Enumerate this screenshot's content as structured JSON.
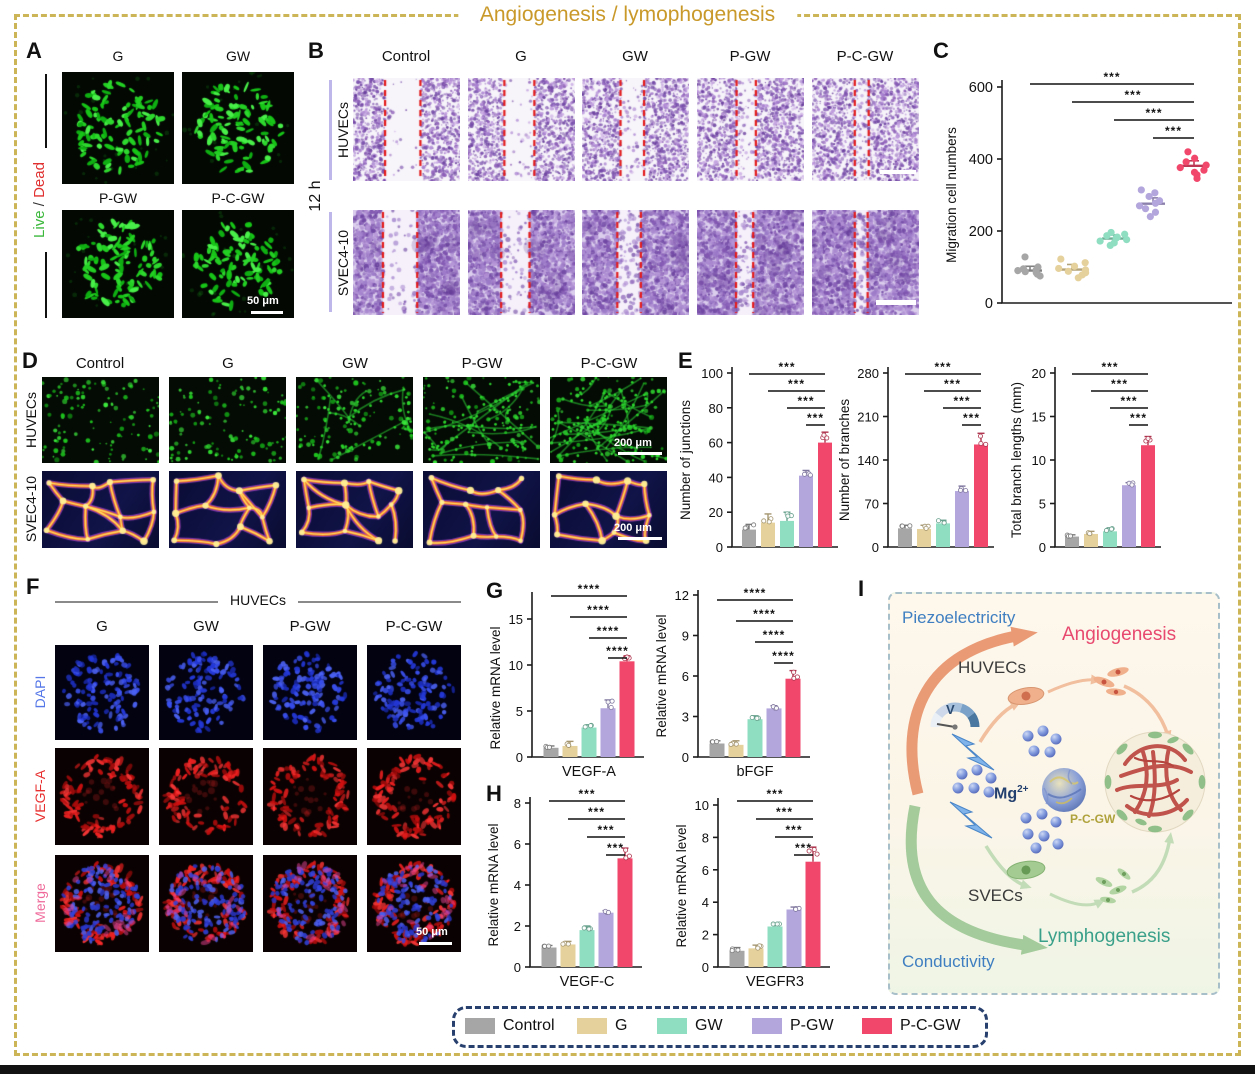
{
  "title": "Angiogenesis / lymophogenesis",
  "colors": {
    "accent_gold": "#c9992a",
    "border_gold": "#cbb557",
    "legend_border": "#27406e",
    "red_dash": "#e31b1b",
    "control": "#a6a6a6",
    "g": "#e5d19c",
    "gw": "#8fdec2",
    "pgw": "#b3a6dd",
    "pcgw": "#f1476b"
  },
  "legend": {
    "items": [
      {
        "label": "Control",
        "color": "#a6a6a6"
      },
      {
        "label": "G",
        "color": "#e5d19c"
      },
      {
        "label": "GW",
        "color": "#8fdec2"
      },
      {
        "label": "P-GW",
        "color": "#b3a6dd"
      },
      {
        "label": "P-C-GW",
        "color": "#f1476b"
      }
    ]
  },
  "panelA": {
    "letter": "A",
    "live": "Live",
    "slash": " / ",
    "dead": "Dead",
    "labels": [
      "G",
      "GW",
      "P-GW",
      "P-C-GW"
    ],
    "scalebar": "50 μm"
  },
  "panelB": {
    "letter": "B",
    "time": "12 h",
    "rows": [
      "HUVECs",
      "SVEC4-10"
    ],
    "columns": [
      "Control",
      "G",
      "GW",
      "P-GW",
      "P-C-GW"
    ]
  },
  "panelC": {
    "letter": "C"
  },
  "panelD": {
    "letter": "D",
    "rows": [
      "HUVECs",
      "SVEC4-10"
    ],
    "columns": [
      "Control",
      "G",
      "GW",
      "P-GW",
      "P-C-GW"
    ],
    "scalebar": "200 μm"
  },
  "panelE": {
    "letter": "E"
  },
  "panelF": {
    "letter": "F",
    "header": "HUVECs",
    "columns": [
      "G",
      "GW",
      "P-GW",
      "P-C-GW"
    ],
    "rows": [
      "DAPI",
      "VEGF-A",
      "Merge"
    ],
    "scalebar": "50 μm"
  },
  "panelG": {
    "letter": "G"
  },
  "panelH": {
    "letter": "H"
  },
  "panelI": {
    "letter": "I",
    "piezoelectricity": "Piezoelectricity",
    "angiogenesis": "Angiogenesis",
    "huvecs": "HUVECs",
    "voltage": "V",
    "mg": "Mg",
    "mg_sup": "2+",
    "pcgw": "P-C-GW",
    "svecs": "SVECs",
    "lymphogenesis": "Lymphogenesis",
    "conductivity": "Conductivity"
  },
  "chart_data": [
    {
      "id": "C",
      "type": "scatter",
      "ylabel": "Migration cell numbers",
      "categories": [
        "Control",
        "G",
        "GW",
        "P-GW",
        "P-C-GW"
      ],
      "ylim": [
        0,
        600
      ],
      "yticks": [
        0,
        200,
        400,
        600
      ],
      "grid": false,
      "legend_position": "none",
      "series": [
        {
          "name": "Control",
          "color": "#a6a6a6",
          "points": [
            75,
            80,
            84,
            87,
            90,
            92,
            95,
            100,
            128
          ]
        },
        {
          "name": "G",
          "color": "#e5d19c",
          "points": [
            70,
            78,
            84,
            88,
            92,
            96,
            102,
            112,
            122
          ]
        },
        {
          "name": "GW",
          "color": "#8fdec2",
          "points": [
            160,
            167,
            172,
            176,
            180,
            183,
            187,
            191,
            196
          ]
        },
        {
          "name": "P-GW",
          "color": "#b3a6dd",
          "points": [
            240,
            252,
            262,
            270,
            277,
            284,
            296,
            306,
            314
          ]
        },
        {
          "name": "P-C-GW",
          "color": "#f1476b",
          "points": [
            346,
            356,
            363,
            369,
            376,
            383,
            392,
            402,
            420
          ]
        }
      ],
      "means": [
        90,
        93,
        179,
        276,
        381
      ],
      "errs": [
        12,
        14,
        10,
        16,
        14
      ],
      "sig": {
        "label": "***",
        "pairs": [
          [
            0,
            4
          ],
          [
            1,
            4
          ],
          [
            2,
            4
          ],
          [
            3,
            4
          ]
        ]
      }
    },
    {
      "id": "E1",
      "type": "bar",
      "ylabel": "Number of junctions",
      "categories": [
        "Control",
        "G",
        "GW",
        "P-GW",
        "P-C-GW"
      ],
      "values": [
        10,
        14,
        15,
        41,
        60
      ],
      "errors": [
        3,
        5,
        5,
        3,
        6
      ],
      "ylim": [
        0,
        100
      ],
      "yticks": [
        0,
        20,
        40,
        60,
        80,
        100
      ],
      "sig": {
        "label": "***",
        "pairs": [
          [
            0,
            4
          ],
          [
            1,
            4
          ],
          [
            2,
            4
          ],
          [
            3,
            4
          ]
        ]
      }
    },
    {
      "id": "E2",
      "type": "bar",
      "ylabel": "Number of branches",
      "categories": [
        "Control",
        "G",
        "GW",
        "P-GW",
        "P-C-GW"
      ],
      "values": [
        30,
        29,
        38,
        90,
        165
      ],
      "errors": [
        5,
        6,
        5,
        8,
        18
      ],
      "ylim": [
        0,
        280
      ],
      "yticks": [
        0,
        70,
        140,
        210,
        280
      ],
      "sig": {
        "label": "***",
        "pairs": [
          [
            0,
            4
          ],
          [
            1,
            4
          ],
          [
            2,
            4
          ],
          [
            3,
            4
          ]
        ]
      }
    },
    {
      "id": "E3",
      "type": "bar",
      "ylabel": "Total branch lengths (mm)",
      "categories": [
        "Control",
        "G",
        "GW",
        "P-GW",
        "P-C-GW"
      ],
      "values": [
        1.2,
        1.5,
        1.8,
        7.1,
        11.7
      ],
      "errors": [
        0.2,
        0.3,
        0.4,
        0.3,
        1.0
      ],
      "ylim": [
        0,
        20
      ],
      "yticks": [
        0,
        5,
        10,
        15,
        20
      ],
      "sig": {
        "label": "***",
        "pairs": [
          [
            0,
            4
          ],
          [
            1,
            4
          ],
          [
            2,
            4
          ],
          [
            3,
            4
          ]
        ]
      }
    },
    {
      "id": "G1",
      "type": "bar",
      "ylabel": "Relative mRNA level",
      "xlabel": "VEGF-A",
      "categories": [
        "Control",
        "G",
        "GW",
        "P-GW",
        "P-C-GW"
      ],
      "values": [
        1.0,
        1.2,
        3.2,
        5.3,
        10.4
      ],
      "errors": [
        0.2,
        0.5,
        0.3,
        0.9,
        0.6
      ],
      "ylim": [
        0,
        18
      ],
      "yticks": [
        0,
        5,
        10,
        15
      ],
      "sig": {
        "label": "****",
        "pairs": [
          [
            0,
            4
          ],
          [
            1,
            4
          ],
          [
            2,
            4
          ],
          [
            3,
            4
          ]
        ]
      }
    },
    {
      "id": "G2",
      "type": "bar",
      "ylabel": "Relative mRNA level",
      "xlabel": "bFGF",
      "categories": [
        "Control",
        "G",
        "GW",
        "P-GW",
        "P-C-GW"
      ],
      "values": [
        1.0,
        0.9,
        2.8,
        3.6,
        5.8
      ],
      "errors": [
        0.2,
        0.3,
        0.25,
        0.2,
        0.6
      ],
      "ylim": [
        0,
        12
      ],
      "yticks": [
        0,
        3,
        6,
        9,
        12
      ],
      "sig": {
        "label": "****",
        "pairs": [
          [
            0,
            4
          ],
          [
            1,
            4
          ],
          [
            2,
            4
          ],
          [
            3,
            4
          ]
        ]
      }
    },
    {
      "id": "H1",
      "type": "bar",
      "ylabel": "Relative mRNA level",
      "xlabel": "VEGF-C",
      "categories": [
        "Control",
        "G",
        "GW",
        "P-GW",
        "P-C-GW"
      ],
      "values": [
        0.95,
        1.1,
        1.8,
        2.65,
        5.3
      ],
      "errors": [
        0.1,
        0.15,
        0.2,
        0.1,
        0.5
      ],
      "ylim": [
        0,
        8
      ],
      "yticks": [
        0,
        2,
        4,
        6,
        8
      ],
      "sig": {
        "label": "***",
        "pairs": [
          [
            0,
            4
          ],
          [
            1,
            4
          ],
          [
            2,
            4
          ],
          [
            3,
            4
          ]
        ]
      }
    },
    {
      "id": "H2",
      "type": "bar",
      "ylabel": "Relative mRNA level",
      "xlabel": "VEGFR3",
      "categories": [
        "Control",
        "G",
        "GW",
        "P-GW",
        "P-C-GW"
      ],
      "values": [
        1.0,
        1.15,
        2.5,
        3.55,
        6.5
      ],
      "errors": [
        0.2,
        0.2,
        0.2,
        0.15,
        0.9
      ],
      "ylim": [
        0,
        10
      ],
      "yticks": [
        0,
        2,
        4,
        6,
        8,
        10
      ],
      "sig": {
        "label": "***",
        "pairs": [
          [
            0,
            4
          ],
          [
            1,
            4
          ],
          [
            2,
            4
          ],
          [
            3,
            4
          ]
        ]
      }
    }
  ]
}
